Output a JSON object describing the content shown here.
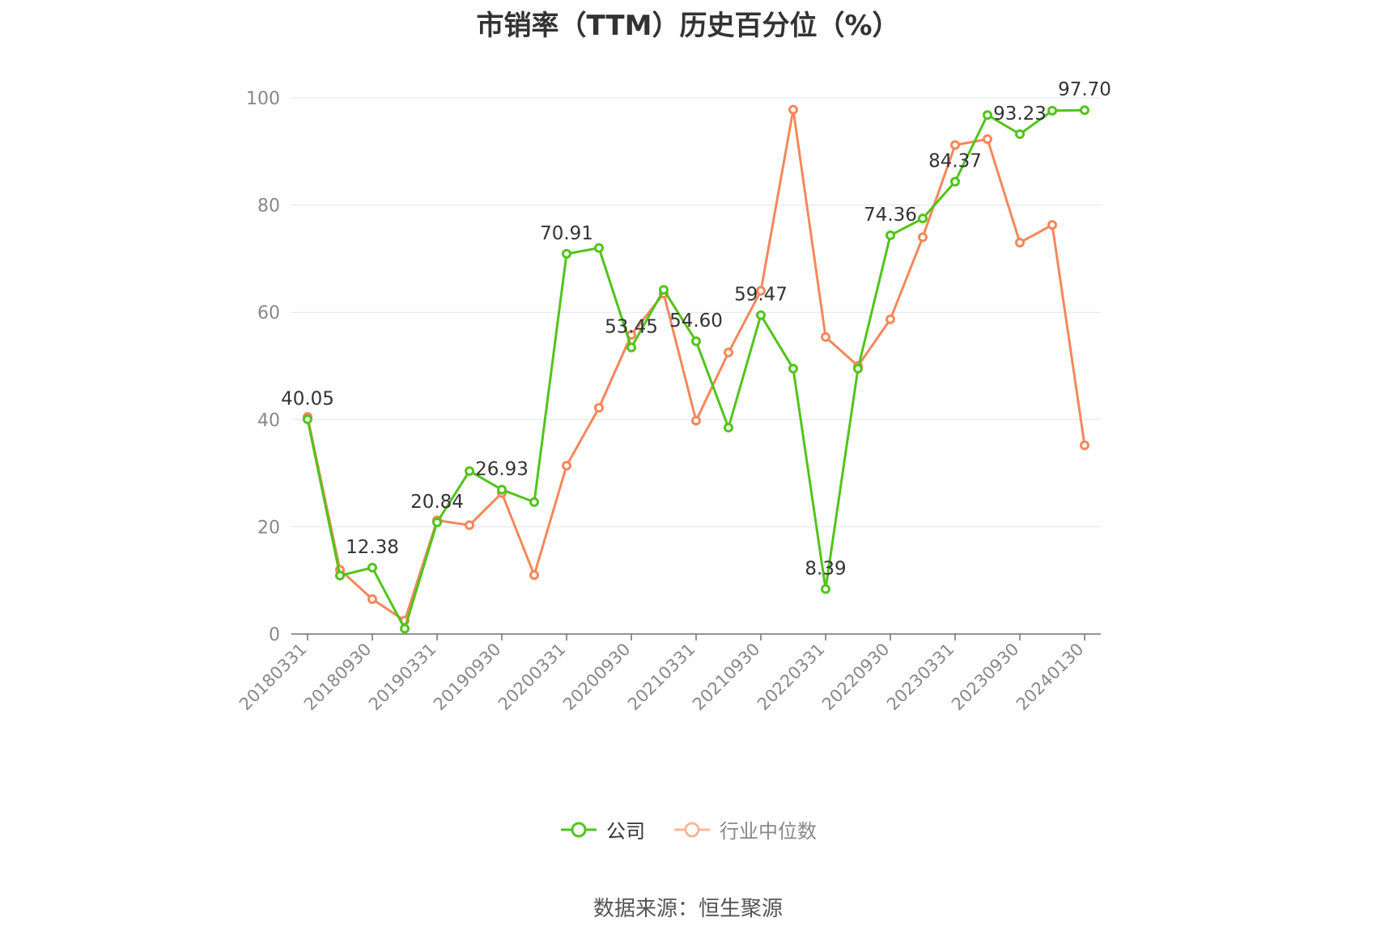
{
  "title": "市销率（TTM）历史百分位（%）",
  "source": "数据来源：恒生聚源",
  "colors": {
    "company": "#52c41a",
    "industry": "#f5875a",
    "grid": "#dfe3f0",
    "axis": "#6e7079",
    "text": "#333333",
    "tick": "#888888"
  },
  "chart_data": {
    "type": "line",
    "title": "市销率（TTM）历史百分位（%）",
    "xlabel": "",
    "ylabel": "",
    "ylim": [
      0,
      100
    ],
    "yticks": [
      0,
      20,
      40,
      60,
      80,
      100
    ],
    "grid": true,
    "legend_position": "bottom",
    "x": [
      "20180331",
      "20180630",
      "20180930",
      "20181231",
      "20190331",
      "20190630",
      "20190930",
      "20191231",
      "20200331",
      "20200630",
      "20200930",
      "20201231",
      "20210331",
      "20210630",
      "20210930",
      "20211231",
      "20220331",
      "20220630",
      "20220930",
      "20221231",
      "20230331",
      "20230630",
      "20230930",
      "20231231",
      "20240130"
    ],
    "x_tick_labels": [
      "20180331",
      "20180930",
      "20190331",
      "20190930",
      "20200331",
      "20200930",
      "20210331",
      "20210930",
      "20220331",
      "20220930",
      "20230331",
      "20230930",
      "20240130"
    ],
    "series": [
      {
        "name": "公司",
        "color": "#52c41a",
        "values": [
          40.05,
          10.9,
          12.38,
          1.0,
          20.84,
          30.4,
          26.93,
          24.6,
          70.91,
          72.0,
          53.45,
          64.2,
          54.6,
          38.5,
          59.47,
          49.5,
          8.39,
          49.5,
          74.36,
          77.5,
          84.37,
          96.8,
          93.23,
          97.6,
          97.7
        ],
        "data_labels": {
          "0": "40.05",
          "2": "12.38",
          "4": "20.84",
          "6": "26.93",
          "8": "70.91",
          "10": "53.45",
          "12": "54.60",
          "14": "59.47",
          "16": "8.39",
          "18": "74.36",
          "20": "84.37",
          "22": "93.23",
          "24": "97.70"
        }
      },
      {
        "name": "行业中位数",
        "color": "#f5875a",
        "values": [
          40.5,
          12.0,
          6.5,
          2.5,
          21.2,
          20.3,
          26.3,
          11.0,
          31.4,
          42.2,
          55.8,
          63.5,
          39.8,
          52.5,
          64.0,
          97.8,
          55.4,
          50.0,
          58.7,
          74.0,
          91.2,
          92.3,
          73.0,
          76.3,
          35.2
        ]
      }
    ]
  }
}
